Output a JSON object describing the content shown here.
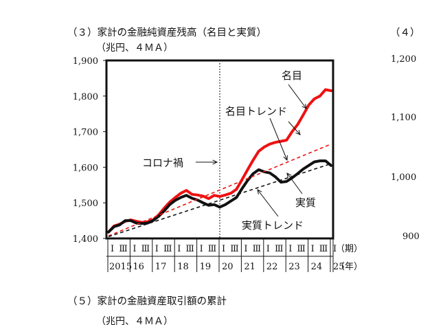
{
  "panel3": {
    "title": "（３）家計の金融純資産残高（名目と実質）",
    "unit": "（兆円、４ＭＡ）"
  },
  "panel4": {
    "title": "（４）",
    "y_ticks": [
      "1,200",
      "1,100",
      "1,000",
      "900"
    ]
  },
  "panel5": {
    "title": "（５）家計の金融資産取引額の累計",
    "unit": "（兆円、４ＭＡ）"
  },
  "chart_data": {
    "type": "line",
    "title": "（３）家計の金融純資産残高（名目と実質）",
    "ylabel": "（兆円、４ＭＡ）",
    "ylim": [
      1400,
      1900
    ],
    "y_ticks": [
      1400,
      1500,
      1600,
      1700,
      1800,
      1900
    ],
    "y_tick_labels": [
      "1,400",
      "1,500",
      "1,600",
      "1,700",
      "1,800",
      "1,900"
    ],
    "x_start_year": 2015,
    "quarter_labels": [
      "Ⅰ",
      "Ⅲ"
    ],
    "year_labels": [
      "2015",
      "16",
      "17",
      "18",
      "19",
      "20",
      "21",
      "22",
      "23",
      "24",
      "25"
    ],
    "period_label": "（期）",
    "year_axis_label": "（年）",
    "x": [
      "2015Q1",
      "2015Q2",
      "2015Q3",
      "2015Q4",
      "2016Q1",
      "2016Q2",
      "2016Q3",
      "2016Q4",
      "2017Q1",
      "2017Q2",
      "2017Q3",
      "2017Q4",
      "2018Q1",
      "2018Q2",
      "2018Q3",
      "2018Q4",
      "2019Q1",
      "2019Q2",
      "2019Q3",
      "2019Q4",
      "2020Q1",
      "2020Q2",
      "2020Q3",
      "2020Q4",
      "2021Q1",
      "2021Q2",
      "2021Q3",
      "2021Q4",
      "2022Q1",
      "2022Q2",
      "2022Q3",
      "2022Q4",
      "2023Q1",
      "2023Q2",
      "2023Q3",
      "2023Q4",
      "2024Q1",
      "2024Q2",
      "2024Q3",
      "2024Q4",
      "2025Q1"
    ],
    "series": [
      {
        "name": "名目",
        "color": "#ee1111",
        "style": "solid",
        "values": [
          1418,
          1435,
          1440,
          1448,
          1452,
          1448,
          1445,
          1447,
          1452,
          1466,
          1485,
          1502,
          1515,
          1527,
          1535,
          1524,
          1522,
          1519,
          1512,
          1521,
          1518,
          1522,
          1527,
          1538,
          1565,
          1593,
          1620,
          1645,
          1657,
          1665,
          1670,
          1673,
          1676,
          1700,
          1720,
          1747,
          1775,
          1792,
          1800,
          1818,
          1815
        ]
      },
      {
        "name": "実質",
        "color": "#111111",
        "style": "solid",
        "values": [
          1418,
          1433,
          1438,
          1450,
          1450,
          1443,
          1442,
          1443,
          1450,
          1462,
          1477,
          1495,
          1507,
          1515,
          1521,
          1513,
          1508,
          1500,
          1493,
          1495,
          1488,
          1495,
          1505,
          1515,
          1540,
          1563,
          1582,
          1593,
          1587,
          1584,
          1573,
          1558,
          1560,
          1570,
          1582,
          1595,
          1605,
          1615,
          1618,
          1618,
          1605
        ]
      },
      {
        "name": "名目トレンド",
        "color": "#ee1111",
        "style": "dashed",
        "values_start": 1407,
        "values_end": 1665
      },
      {
        "name": "実質トレンド",
        "color": "#111111",
        "style": "dashed",
        "values_start": 1405,
        "values_end": 1610
      }
    ],
    "annotations": [
      {
        "text": "名目",
        "target": "名目"
      },
      {
        "text": "名目トレンド",
        "target": "名目トレンド"
      },
      {
        "text": "コロナ禍",
        "target": "2020Q1"
      },
      {
        "text": "実質",
        "target": "実質"
      },
      {
        "text": "実質トレンド",
        "target": "実質トレンド"
      }
    ],
    "vertical_line_at": "2020Q1",
    "grid": false
  }
}
